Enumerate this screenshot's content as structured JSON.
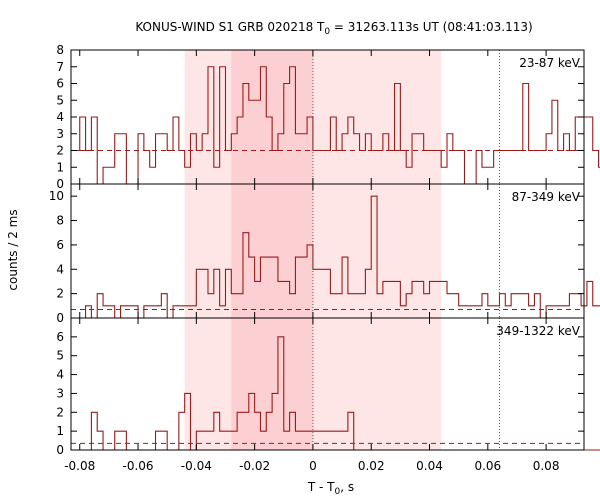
{
  "chart_data": {
    "type": "line",
    "title": "KONUS-WIND S1 GRB 020218 T",
    "title_sub": "0",
    "title_rest": " = 31263.113s UT (08:41:03.113)",
    "xlabel": "T - T",
    "xlabel_sub": "0",
    "xlabel_rest": ", s",
    "ylabel": "counts / 2 ms",
    "xlim": [
      -0.083,
      0.093
    ],
    "x_ticks": [
      -0.08,
      -0.06,
      -0.04,
      -0.02,
      0,
      0.02,
      0.04,
      0.06,
      0.08
    ],
    "x_tick_labels": [
      "-0.08",
      "-0.06",
      "-0.04",
      "-0.02",
      "0",
      "0.02",
      "0.04",
      "0.06",
      "0.08"
    ],
    "bin_start": -0.082,
    "bin_width": 0.002,
    "shaded_intervals": [
      {
        "from": -0.044,
        "to": 0.044,
        "color": "#ffe6e6"
      },
      {
        "from": -0.028,
        "to": 0.0,
        "color": "#fcd0d2"
      }
    ],
    "vertical_lines": [
      0.0,
      0.064
    ],
    "line_color": "#9b1a1a",
    "panels": [
      {
        "label": "23-87 keV",
        "ylim": [
          0,
          8
        ],
        "y_ticks": [
          0,
          1,
          2,
          3,
          4,
          5,
          6,
          7,
          8
        ],
        "background": 2.0,
        "counts": [
          2,
          4,
          2,
          4,
          0,
          1,
          1,
          3,
          3,
          0,
          0,
          3,
          2,
          1,
          3,
          3,
          2,
          4,
          2,
          1,
          3,
          2,
          3,
          7,
          1,
          7,
          2,
          3,
          4,
          6,
          5,
          5,
          7,
          4,
          2,
          3,
          6,
          7,
          3,
          3,
          4,
          2,
          2,
          2,
          4,
          2,
          3,
          4,
          3,
          2,
          3,
          2,
          2,
          3,
          2,
          6,
          2,
          1,
          3,
          3,
          2,
          2,
          2,
          1,
          3,
          2,
          2,
          0,
          0,
          2,
          1,
          1,
          2,
          2,
          2,
          2,
          2,
          6,
          2,
          2,
          2,
          3,
          5,
          2,
          3,
          2,
          4,
          4,
          4,
          2,
          1
        ]
      },
      {
        "label": "87-349 keV",
        "ylim": [
          0,
          11
        ],
        "y_ticks": [
          0,
          2,
          4,
          6,
          8,
          10
        ],
        "background": 0.7,
        "counts": [
          0,
          0,
          1,
          0,
          2,
          1,
          1,
          0,
          1,
          1,
          1,
          0,
          1,
          1,
          1,
          2,
          0,
          1,
          1,
          1,
          1,
          4,
          4,
          2,
          4,
          1,
          4,
          2,
          2,
          7,
          5,
          3,
          5,
          5,
          5,
          3,
          3,
          2,
          5,
          5,
          6,
          4,
          4,
          4,
          2,
          2,
          5,
          2,
          2,
          2,
          4,
          10,
          2,
          3,
          3,
          3,
          1,
          2,
          3,
          3,
          2,
          3,
          3,
          3,
          2,
          2,
          1,
          1,
          1,
          1,
          2,
          1,
          1,
          2,
          1,
          2,
          2,
          2,
          1,
          2,
          0,
          1,
          1,
          1,
          1,
          2,
          2,
          1,
          3,
          1,
          1
        ]
      },
      {
        "label": "349-1322 keV",
        "ylim": [
          0,
          7
        ],
        "y_ticks": [
          0,
          1,
          2,
          3,
          4,
          5,
          6
        ],
        "background": 0.35,
        "counts": [
          0,
          0,
          0,
          2,
          1,
          0,
          0,
          1,
          1,
          0,
          0,
          0,
          0,
          0,
          1,
          1,
          0,
          0,
          2,
          3,
          0,
          1,
          1,
          1,
          2,
          1,
          1,
          1,
          2,
          2,
          3,
          2,
          1,
          2,
          3,
          6,
          1,
          2,
          1,
          1,
          1,
          1,
          1,
          1,
          1,
          1,
          1,
          2,
          0,
          0,
          0,
          0,
          0,
          0,
          0,
          0,
          0,
          0,
          0,
          0,
          0,
          0,
          0,
          0,
          0,
          0,
          0,
          0,
          0,
          0,
          0,
          0,
          0,
          0,
          0,
          0,
          0,
          0,
          0,
          0,
          0,
          0,
          0,
          0,
          0,
          0,
          0,
          0,
          0,
          0,
          0
        ]
      }
    ]
  }
}
